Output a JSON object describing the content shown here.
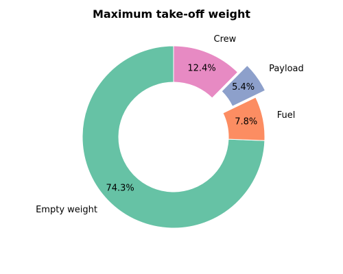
{
  "chart_data": {
    "type": "pie",
    "style": "donut",
    "title": "Maximum take-off weight",
    "start_angle_deg": 90,
    "direction": "counterclockwise",
    "slices": [
      {
        "label": "Empty weight",
        "value": 74.3,
        "pct_label": "74.3%",
        "color": "#66c2a5",
        "exploded": false
      },
      {
        "label": "Fuel",
        "value": 7.8,
        "pct_label": "7.8%",
        "color": "#fc8d62",
        "exploded": false
      },
      {
        "label": "Payload",
        "value": 5.4,
        "pct_label": "5.4%",
        "color": "#8da0cb",
        "exploded": true
      },
      {
        "label": "Crew",
        "value": 12.4,
        "pct_label": "12.4%",
        "color": "#e78ac3",
        "exploded": false
      }
    ]
  }
}
